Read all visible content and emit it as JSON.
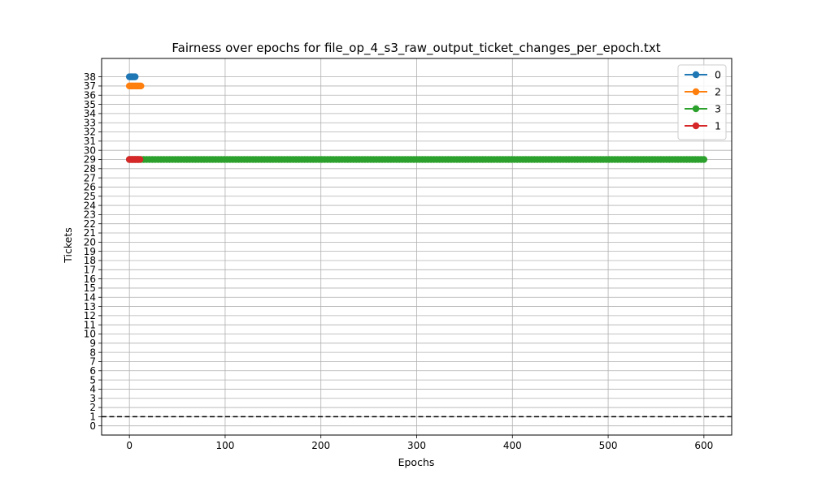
{
  "chart_data": {
    "type": "line",
    "title": "Fairness over epochs for file_op_4_s3_raw_output_ticket_changes_per_epoch.txt",
    "xlabel": "Epochs",
    "ylabel": "Tickets",
    "xlim": [
      -29,
      629
    ],
    "ylim": [
      -1,
      40
    ],
    "xticks": [
      0,
      100,
      200,
      300,
      400,
      500,
      600
    ],
    "yticks": [
      0,
      1,
      2,
      3,
      4,
      5,
      6,
      7,
      8,
      9,
      10,
      11,
      12,
      13,
      14,
      15,
      16,
      17,
      18,
      19,
      20,
      21,
      22,
      23,
      24,
      25,
      26,
      27,
      28,
      29,
      30,
      31,
      32,
      33,
      34,
      35,
      36,
      37,
      38
    ],
    "grid": true,
    "legend_position": "top-right",
    "series": [
      {
        "name": "0",
        "color": "#1f77b4",
        "x": [
          0,
          1,
          2,
          3,
          4,
          5,
          6
        ],
        "y": [
          38,
          38,
          38,
          38,
          38,
          38,
          38
        ]
      },
      {
        "name": "2",
        "color": "#ff7f0e",
        "x": [
          0,
          1,
          2,
          3,
          4,
          5,
          6,
          7,
          8,
          9,
          10,
          11,
          12
        ],
        "y": [
          37,
          37,
          37,
          37,
          37,
          37,
          37,
          37,
          37,
          37,
          37,
          37,
          37
        ]
      },
      {
        "name": "3",
        "color": "#2ca02c",
        "x_start": 0,
        "x_end": 600,
        "x_step": 3,
        "y_const": 29
      },
      {
        "name": "1",
        "color": "#d62728",
        "x": [
          0,
          1,
          2,
          3,
          4,
          5,
          6,
          7,
          8,
          9,
          10,
          11
        ],
        "y": [
          29,
          29,
          29,
          29,
          29,
          29,
          29,
          29,
          29,
          29,
          29,
          29
        ]
      }
    ],
    "reference_line": {
      "y": 1,
      "style": "dashed",
      "color": "#000000"
    }
  }
}
